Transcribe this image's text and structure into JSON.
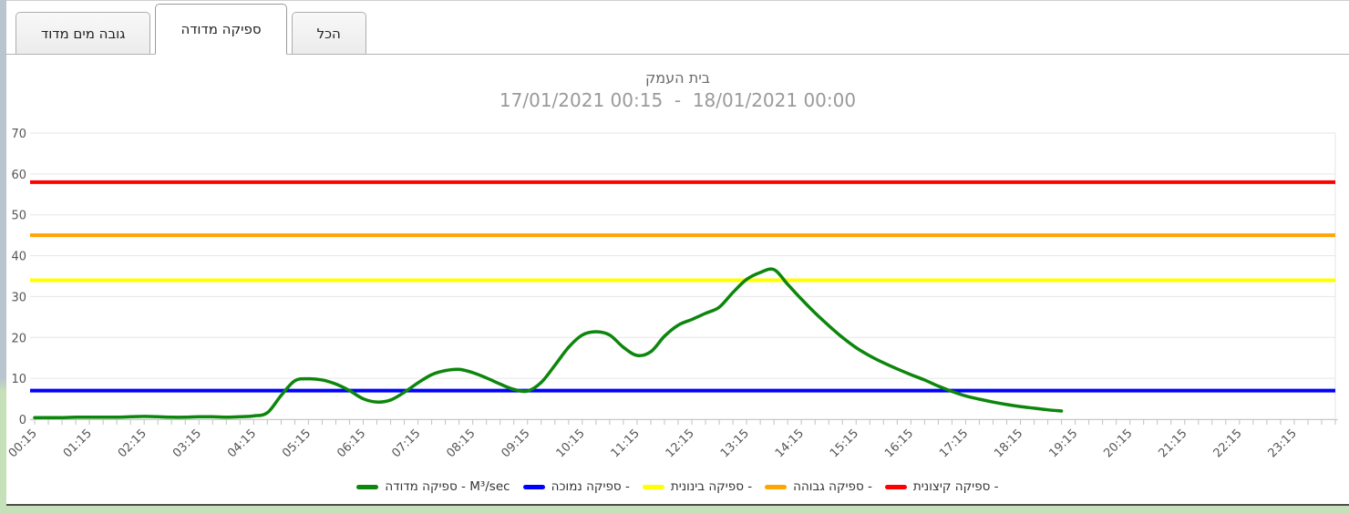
{
  "tabs": [
    {
      "label": "גובה מים מדוד",
      "active": false
    },
    {
      "label": "ספיקה מדודה",
      "active": true
    },
    {
      "label": "הכל",
      "active": false
    }
  ],
  "chart_data": {
    "type": "line",
    "title": "בית העמק",
    "subtitle": "17/01/2021 00:15  -  18/01/2021 00:00",
    "ylim": [
      0,
      70
    ],
    "yticks": [
      0,
      10,
      20,
      30,
      40,
      50,
      60,
      70
    ],
    "grid": "horizontal",
    "legend_position": "bottom-center",
    "x_axis": {
      "start": "00:15",
      "end": "24:00",
      "tick_interval_minutes": 15,
      "label_interval_minutes": 60,
      "labels": [
        "00:15",
        "01:15",
        "02:15",
        "03:15",
        "04:15",
        "05:15",
        "06:15",
        "07:15",
        "08:15",
        "09:15",
        "10:15",
        "11:15",
        "12:15",
        "13:15",
        "14:15",
        "15:15",
        "16:15",
        "17:15",
        "18:15",
        "19:15",
        "20:15",
        "21:15",
        "22:15",
        "23:15"
      ]
    },
    "thresholds": [
      {
        "name": "ספיקה נמוכה",
        "value": 7,
        "color": "#0000ff"
      },
      {
        "name": "ספיקה בינונית",
        "value": 34,
        "color": "#ffff00"
      },
      {
        "name": "ספיקה גבוהה",
        "value": 45,
        "color": "#ffa500"
      },
      {
        "name": "ספיקה קיצונית",
        "value": 58,
        "color": "#ff0000"
      }
    ],
    "series": [
      {
        "name": "ספיקה מדודה",
        "unit": "M³/sec",
        "color": "#0c860c",
        "points": [
          [
            "00:15",
            0.4
          ],
          [
            "00:30",
            0.4
          ],
          [
            "00:45",
            0.4
          ],
          [
            "01:00",
            0.5
          ],
          [
            "01:15",
            0.5
          ],
          [
            "01:30",
            0.5
          ],
          [
            "01:45",
            0.5
          ],
          [
            "02:00",
            0.6
          ],
          [
            "02:15",
            0.7
          ],
          [
            "02:30",
            0.6
          ],
          [
            "02:45",
            0.5
          ],
          [
            "03:00",
            0.5
          ],
          [
            "03:15",
            0.6
          ],
          [
            "03:30",
            0.6
          ],
          [
            "03:45",
            0.5
          ],
          [
            "04:00",
            0.6
          ],
          [
            "04:15",
            0.8
          ],
          [
            "04:30",
            1.6
          ],
          [
            "04:45",
            5.8
          ],
          [
            "05:00",
            9.4
          ],
          [
            "05:15",
            9.9
          ],
          [
            "05:30",
            9.6
          ],
          [
            "05:45",
            8.6
          ],
          [
            "06:00",
            7.0
          ],
          [
            "06:15",
            5.0
          ],
          [
            "06:30",
            4.2
          ],
          [
            "06:45",
            4.7
          ],
          [
            "07:00",
            6.6
          ],
          [
            "07:15",
            8.9
          ],
          [
            "07:30",
            10.9
          ],
          [
            "07:45",
            11.9
          ],
          [
            "08:00",
            12.2
          ],
          [
            "08:15",
            11.4
          ],
          [
            "08:30",
            10.1
          ],
          [
            "08:45",
            8.6
          ],
          [
            "09:00",
            7.3
          ],
          [
            "09:15",
            6.9
          ],
          [
            "09:30",
            9.0
          ],
          [
            "09:45",
            13.2
          ],
          [
            "10:00",
            17.6
          ],
          [
            "10:15",
            20.6
          ],
          [
            "10:30",
            21.4
          ],
          [
            "10:45",
            20.6
          ],
          [
            "11:00",
            17.6
          ],
          [
            "11:15",
            15.6
          ],
          [
            "11:30",
            16.5
          ],
          [
            "11:45",
            20.3
          ],
          [
            "12:00",
            23.0
          ],
          [
            "12:15",
            24.4
          ],
          [
            "12:30",
            25.9
          ],
          [
            "12:45",
            27.4
          ],
          [
            "13:00",
            31.0
          ],
          [
            "13:15",
            34.2
          ],
          [
            "13:30",
            35.9
          ],
          [
            "13:45",
            36.6
          ],
          [
            "14:00",
            33.0
          ],
          [
            "14:15",
            29.4
          ],
          [
            "14:30",
            26.0
          ],
          [
            "14:45",
            22.9
          ],
          [
            "15:00",
            20.0
          ],
          [
            "15:15",
            17.5
          ],
          [
            "15:30",
            15.5
          ],
          [
            "15:45",
            13.8
          ],
          [
            "16:00",
            12.3
          ],
          [
            "16:15",
            10.9
          ],
          [
            "16:30",
            9.6
          ],
          [
            "16:45",
            8.1
          ],
          [
            "17:00",
            6.8
          ],
          [
            "17:15",
            5.7
          ],
          [
            "17:30",
            4.9
          ],
          [
            "17:45",
            4.2
          ],
          [
            "18:00",
            3.6
          ],
          [
            "18:15",
            3.1
          ],
          [
            "18:30",
            2.7
          ],
          [
            "18:45",
            2.3
          ],
          [
            "19:00",
            2.0
          ]
        ]
      }
    ]
  },
  "legend": {
    "items": [
      {
        "name": "legend-measured-flow",
        "label": "ספיקה מדודה - M³/sec",
        "color": "#0c860c"
      },
      {
        "name": "legend-low-flow",
        "label": "ספיקה נמוכה -",
        "color": "#0000ff"
      },
      {
        "name": "legend-medium-flow",
        "label": "ספיקה בינונית -",
        "color": "#ffff00"
      },
      {
        "name": "legend-high-flow",
        "label": "ספיקה גבוהה -",
        "color": "#ffa500"
      },
      {
        "name": "legend-extreme-flow",
        "label": "ספיקה קיצונית -",
        "color": "#ff0000"
      }
    ]
  },
  "colors": {
    "gridline": "#e6e6e6",
    "axis": "#c8c8c8",
    "tick": "#c0c0c0",
    "axis_label": "#555555"
  }
}
